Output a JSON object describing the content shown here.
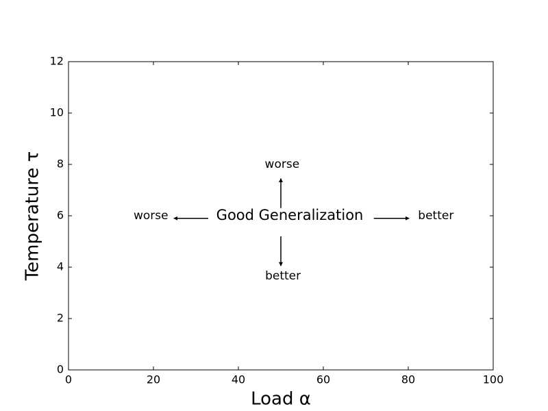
{
  "chart_data": {
    "type": "annotation",
    "xlabel": "Load α",
    "ylabel": "Temperature τ",
    "xlim": [
      0,
      100
    ],
    "ylim": [
      0,
      12
    ],
    "xticks": [
      0,
      20,
      40,
      60,
      80,
      100
    ],
    "yticks": [
      0,
      2,
      4,
      6,
      8,
      10,
      12
    ],
    "annotations": [
      {
        "text": "Good Generalization",
        "x": 52.1,
        "y": 6,
        "size": "big"
      },
      {
        "text": "worse",
        "x": 50.3,
        "y": 8
      },
      {
        "text": "better",
        "x": 50.5,
        "y": 3.65
      },
      {
        "text": "worse",
        "x": 19.4,
        "y": 6
      },
      {
        "text": "better",
        "x": 86.5,
        "y": 6
      }
    ],
    "arrows": [
      {
        "from": [
          50,
          6.3
        ],
        "to": [
          50,
          7.45
        ]
      },
      {
        "from": [
          50,
          5.2
        ],
        "to": [
          50,
          4.05
        ]
      },
      {
        "from": [
          32.9,
          5.9
        ],
        "to": [
          24.8,
          5.9
        ]
      },
      {
        "from": [
          71.9,
          5.9
        ],
        "to": [
          80.2,
          5.9
        ]
      }
    ]
  }
}
